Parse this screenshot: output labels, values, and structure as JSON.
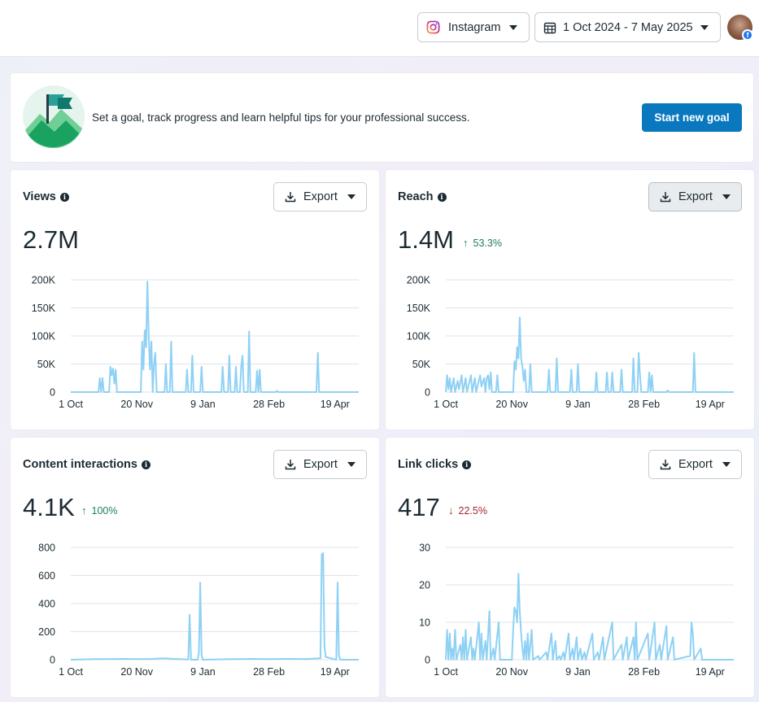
{
  "header": {
    "platform": "Instagram",
    "date_range": "1 Oct 2024 - 7 May 2025",
    "platform_icon": "instagram-icon",
    "calendar_icon": "calendar-icon",
    "avatar_badge": "f"
  },
  "goal": {
    "text": "Set a goal, track progress and learn helpful tips for your professional success.",
    "button": "Start new goal",
    "accent": "#0a78be"
  },
  "colors": {
    "series": "#8fd1f4",
    "up": "#217d5a",
    "down": "#a3262f"
  },
  "metrics": [
    {
      "title": "Views",
      "value": "2.7M",
      "change": "",
      "direction": "",
      "export": "Export"
    },
    {
      "title": "Reach",
      "value": "1.4M",
      "change": "53.3%",
      "direction": "up",
      "export": "Export"
    },
    {
      "title": "Content interactions",
      "value": "4.1K",
      "change": "100%",
      "direction": "up",
      "export": "Export"
    },
    {
      "title": "Link clicks",
      "value": "417",
      "change": "22.5%",
      "direction": "down",
      "export": "Export"
    }
  ],
  "chart_data": [
    {
      "type": "line",
      "title": "Views",
      "xlabels": [
        "1 Oct",
        "20 Nov",
        "9 Jan",
        "28 Feb",
        "19 Apr"
      ],
      "ylabels": [
        "0",
        "50K",
        "100K",
        "150K",
        "200K"
      ],
      "ylim": [
        0,
        200000
      ],
      "grid": true,
      "x_range": [
        "2024-10-01",
        "2025-05-07"
      ],
      "points": [
        [
          "2024-10-01",
          0
        ],
        [
          "2024-10-22",
          0
        ],
        [
          "2024-10-23",
          25000
        ],
        [
          "2024-10-24",
          0
        ],
        [
          "2024-10-25",
          25000
        ],
        [
          "2024-10-26",
          0
        ],
        [
          "2024-10-30",
          0
        ],
        [
          "2024-10-31",
          45000
        ],
        [
          "2024-11-01",
          30000
        ],
        [
          "2024-11-02",
          42000
        ],
        [
          "2024-11-03",
          15000
        ],
        [
          "2024-11-04",
          40000
        ],
        [
          "2024-11-05",
          0
        ],
        [
          "2024-11-23",
          0
        ],
        [
          "2024-11-24",
          90000
        ],
        [
          "2024-11-25",
          40000
        ],
        [
          "2024-11-26",
          110000
        ],
        [
          "2024-11-27",
          80000
        ],
        [
          "2024-11-28",
          197000
        ],
        [
          "2024-11-29",
          100000
        ],
        [
          "2024-11-30",
          40000
        ],
        [
          "2024-12-01",
          90000
        ],
        [
          "2024-12-02",
          0
        ],
        [
          "2024-12-03",
          50000
        ],
        [
          "2024-12-04",
          70000
        ],
        [
          "2024-12-05",
          0
        ],
        [
          "2024-12-11",
          0
        ],
        [
          "2024-12-12",
          50000
        ],
        [
          "2024-12-13",
          0
        ],
        [
          "2024-12-15",
          0
        ],
        [
          "2024-12-16",
          90000
        ],
        [
          "2024-12-17",
          0
        ],
        [
          "2024-12-27",
          0
        ],
        [
          "2024-12-28",
          40000
        ],
        [
          "2024-12-29",
          0
        ],
        [
          "2024-12-31",
          0
        ],
        [
          "2025-01-01",
          65000
        ],
        [
          "2025-01-02",
          0
        ],
        [
          "2025-01-07",
          0
        ],
        [
          "2025-01-08",
          45000
        ],
        [
          "2025-01-09",
          0
        ],
        [
          "2025-01-23",
          0
        ],
        [
          "2025-01-24",
          45000
        ],
        [
          "2025-01-25",
          0
        ],
        [
          "2025-01-28",
          0
        ],
        [
          "2025-01-29",
          65000
        ],
        [
          "2025-01-30",
          0
        ],
        [
          "2025-02-02",
          0
        ],
        [
          "2025-02-03",
          45000
        ],
        [
          "2025-02-04",
          0
        ],
        [
          "2025-02-06",
          0
        ],
        [
          "2025-02-07",
          45000
        ],
        [
          "2025-02-08",
          65000
        ],
        [
          "2025-02-09",
          0
        ],
        [
          "2025-02-12",
          0
        ],
        [
          "2025-02-13",
          108000
        ],
        [
          "2025-02-14",
          0
        ],
        [
          "2025-02-18",
          0
        ],
        [
          "2025-02-19",
          38000
        ],
        [
          "2025-02-20",
          0
        ],
        [
          "2025-02-21",
          40000
        ],
        [
          "2025-02-22",
          0
        ],
        [
          "2025-03-05",
          0
        ],
        [
          "2025-03-06",
          2000
        ],
        [
          "2025-03-07",
          0
        ],
        [
          "2025-04-05",
          0
        ],
        [
          "2025-04-06",
          70000
        ],
        [
          "2025-04-07",
          0
        ],
        [
          "2025-05-07",
          0
        ]
      ]
    },
    {
      "type": "line",
      "title": "Reach",
      "xlabels": [
        "1 Oct",
        "20 Nov",
        "9 Jan",
        "28 Feb",
        "19 Apr"
      ],
      "ylabels": [
        "0",
        "50K",
        "100K",
        "150K",
        "200K"
      ],
      "ylim": [
        0,
        200000
      ],
      "grid": true,
      "x_range": [
        "2024-10-01",
        "2025-05-07"
      ],
      "points": [
        [
          "2024-10-01",
          0
        ],
        [
          "2024-10-02",
          30000
        ],
        [
          "2024-10-03",
          5000
        ],
        [
          "2024-10-04",
          25000
        ],
        [
          "2024-10-05",
          0
        ],
        [
          "2024-10-07",
          25000
        ],
        [
          "2024-10-08",
          0
        ],
        [
          "2024-10-10",
          20000
        ],
        [
          "2024-10-11",
          5000
        ],
        [
          "2024-10-13",
          30000
        ],
        [
          "2024-10-14",
          0
        ],
        [
          "2024-10-16",
          25000
        ],
        [
          "2024-10-17",
          0
        ],
        [
          "2024-10-20",
          30000
        ],
        [
          "2024-10-21",
          0
        ],
        [
          "2024-10-23",
          25000
        ],
        [
          "2024-10-24",
          0
        ],
        [
          "2024-10-27",
          30000
        ],
        [
          "2024-10-28",
          10000
        ],
        [
          "2024-10-30",
          25000
        ],
        [
          "2024-10-31",
          0
        ],
        [
          "2024-11-01",
          25000
        ],
        [
          "2024-11-02",
          30000
        ],
        [
          "2024-11-03",
          5000
        ],
        [
          "2024-11-04",
          35000
        ],
        [
          "2024-11-05",
          0
        ],
        [
          "2024-11-08",
          0
        ],
        [
          "2024-11-09",
          30000
        ],
        [
          "2024-11-10",
          0
        ],
        [
          "2024-11-21",
          0
        ],
        [
          "2024-11-22",
          55000
        ],
        [
          "2024-11-23",
          40000
        ],
        [
          "2024-11-24",
          80000
        ],
        [
          "2024-11-25",
          60000
        ],
        [
          "2024-11-26",
          133000
        ],
        [
          "2024-11-27",
          60000
        ],
        [
          "2024-11-28",
          45000
        ],
        [
          "2024-11-29",
          20000
        ],
        [
          "2024-11-30",
          40000
        ],
        [
          "2024-12-01",
          0
        ],
        [
          "2024-12-03",
          0
        ],
        [
          "2024-12-04",
          50000
        ],
        [
          "2024-12-05",
          0
        ],
        [
          "2024-12-17",
          0
        ],
        [
          "2024-12-18",
          40000
        ],
        [
          "2024-12-19",
          0
        ],
        [
          "2024-12-23",
          0
        ],
        [
          "2024-12-24",
          60000
        ],
        [
          "2024-12-25",
          0
        ],
        [
          "2025-01-03",
          0
        ],
        [
          "2025-01-04",
          40000
        ],
        [
          "2025-01-05",
          0
        ],
        [
          "2025-01-08",
          0
        ],
        [
          "2025-01-09",
          50000
        ],
        [
          "2025-01-10",
          0
        ],
        [
          "2025-01-22",
          0
        ],
        [
          "2025-01-23",
          35000
        ],
        [
          "2025-01-24",
          0
        ],
        [
          "2025-01-30",
          0
        ],
        [
          "2025-01-31",
          35000
        ],
        [
          "2025-02-01",
          0
        ],
        [
          "2025-02-03",
          0
        ],
        [
          "2025-02-04",
          35000
        ],
        [
          "2025-02-05",
          0
        ],
        [
          "2025-02-10",
          0
        ],
        [
          "2025-02-11",
          40000
        ],
        [
          "2025-02-12",
          0
        ],
        [
          "2025-02-19",
          0
        ],
        [
          "2025-02-20",
          60000
        ],
        [
          "2025-02-21",
          0
        ],
        [
          "2025-02-23",
          0
        ],
        [
          "2025-02-24",
          70000
        ],
        [
          "2025-02-25",
          30000
        ],
        [
          "2025-02-26",
          0
        ],
        [
          "2025-03-03",
          0
        ],
        [
          "2025-03-04",
          35000
        ],
        [
          "2025-03-05",
          0
        ],
        [
          "2025-03-06",
          30000
        ],
        [
          "2025-03-07",
          0
        ],
        [
          "2025-03-17",
          0
        ],
        [
          "2025-03-18",
          3000
        ],
        [
          "2025-03-19",
          0
        ],
        [
          "2025-04-06",
          0
        ],
        [
          "2025-04-07",
          70000
        ],
        [
          "2025-04-08",
          0
        ],
        [
          "2025-05-07",
          0
        ]
      ]
    },
    {
      "type": "line",
      "title": "Content interactions",
      "xlabels": [
        "1 Oct",
        "20 Nov",
        "9 Jan",
        "28 Feb",
        "19 Apr"
      ],
      "ylabels": [
        "0",
        "200",
        "400",
        "600",
        "800"
      ],
      "ylim": [
        0,
        800
      ],
      "grid": true,
      "x_range": [
        "2024-10-01",
        "2025-05-07"
      ],
      "points": [
        [
          "2024-10-01",
          0
        ],
        [
          "2024-10-20",
          4
        ],
        [
          "2024-11-10",
          6
        ],
        [
          "2024-11-20",
          4
        ],
        [
          "2024-12-01",
          6
        ],
        [
          "2024-12-10",
          10
        ],
        [
          "2024-12-20",
          5
        ],
        [
          "2024-12-29",
          2
        ],
        [
          "2024-12-30",
          320
        ],
        [
          "2024-12-31",
          0
        ],
        [
          "2025-01-05",
          0
        ],
        [
          "2025-01-06",
          50
        ],
        [
          "2025-01-07",
          550
        ],
        [
          "2025-01-08",
          30
        ],
        [
          "2025-01-09",
          0
        ],
        [
          "2025-02-01",
          4
        ],
        [
          "2025-02-15",
          6
        ],
        [
          "2025-03-01",
          4
        ],
        [
          "2025-03-15",
          6
        ],
        [
          "2025-03-28",
          5
        ],
        [
          "2025-04-08",
          10
        ],
        [
          "2025-04-09",
          750
        ],
        [
          "2025-04-10",
          760
        ],
        [
          "2025-04-11",
          100
        ],
        [
          "2025-04-12",
          20
        ],
        [
          "2025-04-20",
          0
        ],
        [
          "2025-04-21",
          550
        ],
        [
          "2025-04-22",
          30
        ],
        [
          "2025-04-23",
          0
        ],
        [
          "2025-05-07",
          0
        ]
      ]
    },
    {
      "type": "line",
      "title": "Link clicks",
      "xlabels": [
        "1 Oct",
        "20 Nov",
        "9 Jan",
        "28 Feb",
        "19 Apr"
      ],
      "ylabels": [
        "0",
        "10",
        "20",
        "30"
      ],
      "ylim": [
        0,
        30
      ],
      "grid": true,
      "x_range": [
        "2024-10-01",
        "2025-05-07"
      ],
      "points": [
        [
          "2024-10-01",
          0
        ],
        [
          "2024-10-02",
          8
        ],
        [
          "2024-10-03",
          0
        ],
        [
          "2024-10-04",
          7
        ],
        [
          "2024-10-05",
          0
        ],
        [
          "2024-10-06",
          3
        ],
        [
          "2024-10-07",
          0
        ],
        [
          "2024-10-08",
          8
        ],
        [
          "2024-10-09",
          0
        ],
        [
          "2024-10-12",
          4
        ],
        [
          "2024-10-13",
          0
        ],
        [
          "2024-10-14",
          6
        ],
        [
          "2024-10-15",
          0
        ],
        [
          "2024-10-16",
          8
        ],
        [
          "2024-10-17",
          0
        ],
        [
          "2024-10-20",
          6
        ],
        [
          "2024-10-21",
          0
        ],
        [
          "2024-10-22",
          3
        ],
        [
          "2024-10-23",
          0
        ],
        [
          "2024-10-26",
          10
        ],
        [
          "2024-10-27",
          0
        ],
        [
          "2024-10-28",
          7
        ],
        [
          "2024-10-29",
          0
        ],
        [
          "2024-10-31",
          5
        ],
        [
          "2024-11-01",
          0
        ],
        [
          "2024-11-03",
          13
        ],
        [
          "2024-11-04",
          0
        ],
        [
          "2024-11-06",
          3
        ],
        [
          "2024-11-07",
          0
        ],
        [
          "2024-11-10",
          10
        ],
        [
          "2024-11-11",
          0
        ],
        [
          "2024-11-20",
          0
        ],
        [
          "2024-11-21",
          8
        ],
        [
          "2024-11-22",
          14
        ],
        [
          "2024-11-23",
          13
        ],
        [
          "2024-11-24",
          10
        ],
        [
          "2024-11-25",
          23
        ],
        [
          "2024-11-26",
          13
        ],
        [
          "2024-11-27",
          7
        ],
        [
          "2024-11-28",
          3
        ],
        [
          "2024-11-29",
          0
        ],
        [
          "2024-11-30",
          5
        ],
        [
          "2024-12-01",
          0
        ],
        [
          "2024-12-02",
          7
        ],
        [
          "2024-12-03",
          0
        ],
        [
          "2024-12-05",
          8
        ],
        [
          "2024-12-06",
          0
        ],
        [
          "2024-12-10",
          1
        ],
        [
          "2024-12-11",
          0
        ],
        [
          "2024-12-16",
          2
        ],
        [
          "2024-12-17",
          0
        ],
        [
          "2024-12-20",
          7
        ],
        [
          "2024-12-21",
          0
        ],
        [
          "2024-12-23",
          5
        ],
        [
          "2024-12-24",
          0
        ],
        [
          "2024-12-26",
          1
        ],
        [
          "2024-12-27",
          0
        ],
        [
          "2024-12-29",
          2
        ],
        [
          "2024-12-30",
          0
        ],
        [
          "2025-01-02",
          7
        ],
        [
          "2025-01-03",
          0
        ],
        [
          "2025-01-05",
          3
        ],
        [
          "2025-01-06",
          0
        ],
        [
          "2025-01-08",
          6
        ],
        [
          "2025-01-09",
          0
        ],
        [
          "2025-01-11",
          3
        ],
        [
          "2025-01-12",
          0
        ],
        [
          "2025-01-14",
          2
        ],
        [
          "2025-01-15",
          0
        ],
        [
          "2025-01-20",
          7
        ],
        [
          "2025-01-21",
          0
        ],
        [
          "2025-01-24",
          2
        ],
        [
          "2025-01-25",
          0
        ],
        [
          "2025-01-28",
          6
        ],
        [
          "2025-01-29",
          0
        ],
        [
          "2025-02-04",
          10
        ],
        [
          "2025-02-05",
          0
        ],
        [
          "2025-02-11",
          4
        ],
        [
          "2025-02-12",
          0
        ],
        [
          "2025-02-15",
          6
        ],
        [
          "2025-02-16",
          0
        ],
        [
          "2025-02-20",
          6
        ],
        [
          "2025-02-21",
          0
        ],
        [
          "2025-02-22",
          10
        ],
        [
          "2025-02-23",
          0
        ],
        [
          "2025-03-03",
          7
        ],
        [
          "2025-03-04",
          0
        ],
        [
          "2025-03-08",
          10
        ],
        [
          "2025-03-09",
          0
        ],
        [
          "2025-03-12",
          4
        ],
        [
          "2025-03-13",
          0
        ],
        [
          "2025-03-17",
          9
        ],
        [
          "2025-03-18",
          0
        ],
        [
          "2025-03-22",
          6
        ],
        [
          "2025-03-23",
          0
        ],
        [
          "2025-04-04",
          1
        ],
        [
          "2025-04-05",
          10
        ],
        [
          "2025-04-06",
          7
        ],
        [
          "2025-04-07",
          0
        ],
        [
          "2025-04-12",
          3
        ],
        [
          "2025-04-13",
          0
        ],
        [
          "2025-05-07",
          0
        ]
      ]
    }
  ]
}
